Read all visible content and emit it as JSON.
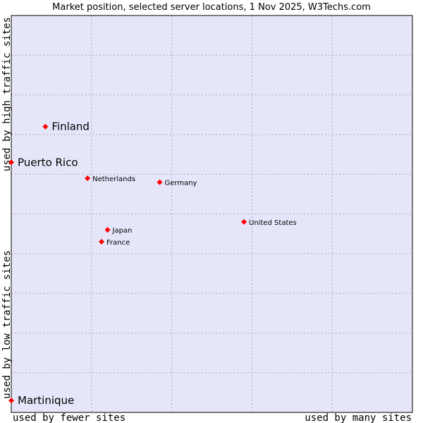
{
  "chart_data": {
    "type": "scatter",
    "title": "Market position, selected server locations, 1 Nov 2025, W3Techs.com",
    "x_label_low": "used by fewer sites",
    "x_label_high": "used by many sites",
    "y_label_low": "used by low traffic sites",
    "y_label_high": "used by high traffic sites",
    "x_range": [
      0,
      100
    ],
    "y_range": [
      0,
      100
    ],
    "grid": true,
    "colors": {
      "plot_background": "#e6e6fa",
      "grid": "#aaaaaa",
      "point": "#ff0000",
      "text": "#000000"
    },
    "points": [
      {
        "name": "Finland",
        "x": 8.5,
        "y": 72,
        "emphasis": "large"
      },
      {
        "name": "Puerto Rico",
        "x": 0,
        "y": 63,
        "emphasis": "large"
      },
      {
        "name": "Netherlands",
        "x": 19,
        "y": 59,
        "emphasis": "normal"
      },
      {
        "name": "Germany",
        "x": 37,
        "y": 58,
        "emphasis": "normal"
      },
      {
        "name": "United States",
        "x": 58,
        "y": 48,
        "emphasis": "normal"
      },
      {
        "name": "Japan",
        "x": 24,
        "y": 46,
        "emphasis": "normal"
      },
      {
        "name": "France",
        "x": 22.5,
        "y": 43,
        "emphasis": "normal"
      },
      {
        "name": "Martinique",
        "x": 0,
        "y": 3,
        "emphasis": "large"
      }
    ]
  }
}
